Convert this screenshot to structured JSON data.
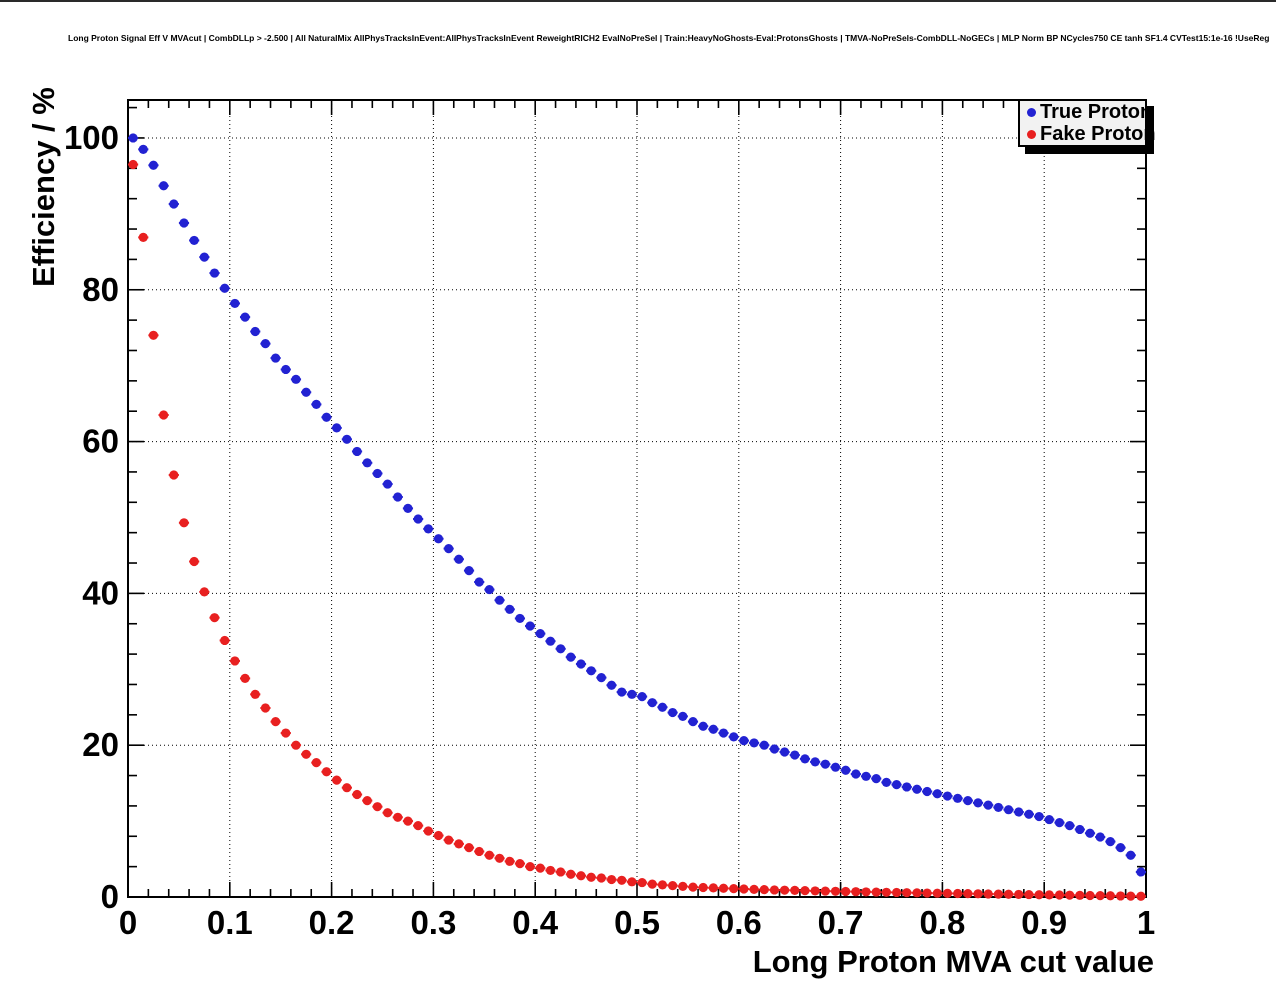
{
  "title": {
    "text": "Long Proton Signal Eff V MVAcut | CombDLLp > -2.500 | All NaturalMix AllPhysTracksInEvent:AllPhysTracksInEvent ReweightRICH2 EvalNoPreSel | Train:HeavyNoGhosts-Eval:ProtonsGhosts | TMVA-NoPreSels-CombDLL-NoGECs | MLP Norm BP NCycles750 CE tanh SF1.4 CVTest15:1e-16 !UseReg"
  },
  "axes": {
    "x": {
      "label": "Long Proton MVA cut value",
      "tick_labels": [
        "0",
        "0.1",
        "0.2",
        "0.3",
        "0.4",
        "0.5",
        "0.6",
        "0.7",
        "0.8",
        "0.9",
        "1"
      ],
      "tick_values": [
        0,
        0.1,
        0.2,
        0.3,
        0.4,
        0.5,
        0.6,
        0.7,
        0.8,
        0.9,
        1
      ],
      "minor_step": 0.02
    },
    "y": {
      "label": "Efficiency / %",
      "tick_labels": [
        "0",
        "20",
        "40",
        "60",
        "80",
        "100"
      ],
      "tick_values": [
        0,
        20,
        40,
        60,
        80,
        100
      ],
      "minor_step": 4
    }
  },
  "legend": {
    "entries": [
      {
        "label": "True Proton",
        "color": "#2222d2"
      },
      {
        "label": "Fake Proton",
        "color": "#e82020"
      }
    ]
  },
  "colors": {
    "frame": "#000000",
    "grid": "#000000",
    "background": "#ffffff",
    "true_proton": "#2222d2",
    "fake_proton": "#e82020"
  },
  "chart_data": {
    "type": "scatter",
    "title": "Long Proton Signal Eff V MVAcut | CombDLLp > -2.500 | All NaturalMix AllPhysTracksInEvent:AllPhysTracksInEvent ReweightRICH2 EvalNoPreSel | Train:HeavyNoGhosts-Eval:ProtonsGhosts | TMVA-NoPreSels-CombDLL-NoGECs | MLP Norm BP NCycles750 CE tanh SF1.4 CVTest15:1e-16 !UseReg",
    "xlabel": "Long Proton MVA cut value",
    "ylabel": "Efficiency / %",
    "xlim": [
      0,
      1
    ],
    "ylim": [
      0,
      105
    ],
    "grid": "dotted",
    "legend_position": "top-right",
    "marker": "filled-circle",
    "x_err": 0.005,
    "x": [
      0.005,
      0.015,
      0.025,
      0.035,
      0.045,
      0.055,
      0.065,
      0.075,
      0.085,
      0.095,
      0.105,
      0.115,
      0.125,
      0.135,
      0.145,
      0.155,
      0.165,
      0.175,
      0.185,
      0.195,
      0.205,
      0.215,
      0.225,
      0.235,
      0.245,
      0.255,
      0.265,
      0.275,
      0.285,
      0.295,
      0.305,
      0.315,
      0.325,
      0.335,
      0.345,
      0.355,
      0.365,
      0.375,
      0.385,
      0.395,
      0.405,
      0.415,
      0.425,
      0.435,
      0.445,
      0.455,
      0.465,
      0.475,
      0.485,
      0.495,
      0.505,
      0.515,
      0.525,
      0.535,
      0.545,
      0.555,
      0.565,
      0.575,
      0.585,
      0.595,
      0.605,
      0.615,
      0.625,
      0.635,
      0.645,
      0.655,
      0.665,
      0.675,
      0.685,
      0.695,
      0.705,
      0.715,
      0.725,
      0.735,
      0.745,
      0.755,
      0.765,
      0.775,
      0.785,
      0.795,
      0.805,
      0.815,
      0.825,
      0.835,
      0.845,
      0.855,
      0.865,
      0.875,
      0.885,
      0.895,
      0.905,
      0.915,
      0.925,
      0.935,
      0.945,
      0.955,
      0.965,
      0.975,
      0.985,
      0.995
    ],
    "series": [
      {
        "name": "True Proton",
        "color": "#2222d2",
        "y": [
          100.0,
          98.5,
          96.4,
          93.7,
          91.3,
          88.8,
          86.5,
          84.3,
          82.2,
          80.2,
          78.2,
          76.4,
          74.5,
          72.9,
          71.0,
          69.5,
          68.2,
          66.5,
          64.9,
          63.2,
          61.8,
          60.3,
          58.7,
          57.2,
          55.8,
          54.4,
          52.7,
          51.2,
          49.8,
          48.5,
          47.2,
          45.9,
          44.5,
          43.0,
          41.5,
          40.5,
          39.1,
          37.9,
          36.7,
          35.7,
          34.7,
          33.7,
          32.7,
          31.6,
          30.7,
          29.8,
          28.9,
          27.9,
          27.0,
          26.7,
          26.4,
          25.6,
          25.0,
          24.3,
          23.8,
          23.1,
          22.5,
          22.1,
          21.6,
          21.1,
          20.6,
          20.3,
          20.0,
          19.5,
          19.1,
          18.7,
          18.2,
          17.8,
          17.5,
          17.1,
          16.7,
          16.2,
          15.9,
          15.6,
          15.1,
          14.8,
          14.5,
          14.2,
          13.9,
          13.6,
          13.3,
          13.0,
          12.7,
          12.4,
          12.1,
          11.8,
          11.5,
          11.2,
          10.9,
          10.6,
          10.2,
          9.8,
          9.4,
          8.9,
          8.4,
          7.9,
          7.3,
          6.5,
          5.5,
          3.3
        ]
      },
      {
        "name": "Fake Proton",
        "color": "#e82020",
        "y": [
          96.5,
          86.9,
          74.0,
          63.5,
          55.6,
          49.3,
          44.2,
          40.2,
          36.8,
          33.8,
          31.1,
          28.8,
          26.7,
          24.9,
          23.1,
          21.6,
          20.0,
          18.8,
          17.7,
          16.5,
          15.4,
          14.4,
          13.5,
          12.7,
          11.9,
          11.1,
          10.5,
          10.0,
          9.4,
          8.7,
          8.1,
          7.5,
          7.0,
          6.5,
          6.0,
          5.5,
          5.1,
          4.7,
          4.4,
          4.0,
          3.8,
          3.5,
          3.3,
          3.0,
          2.8,
          2.6,
          2.5,
          2.3,
          2.2,
          2.0,
          1.9,
          1.7,
          1.6,
          1.5,
          1.4,
          1.3,
          1.25,
          1.2,
          1.15,
          1.1,
          1.05,
          1.0,
          0.97,
          0.93,
          0.9,
          0.87,
          0.84,
          0.8,
          0.78,
          0.75,
          0.72,
          0.7,
          0.67,
          0.65,
          0.62,
          0.6,
          0.57,
          0.55,
          0.52,
          0.5,
          0.48,
          0.46,
          0.44,
          0.42,
          0.4,
          0.38,
          0.36,
          0.34,
          0.32,
          0.3,
          0.28,
          0.26,
          0.24,
          0.22,
          0.2,
          0.18,
          0.16,
          0.14,
          0.12,
          0.1
        ]
      }
    ]
  }
}
